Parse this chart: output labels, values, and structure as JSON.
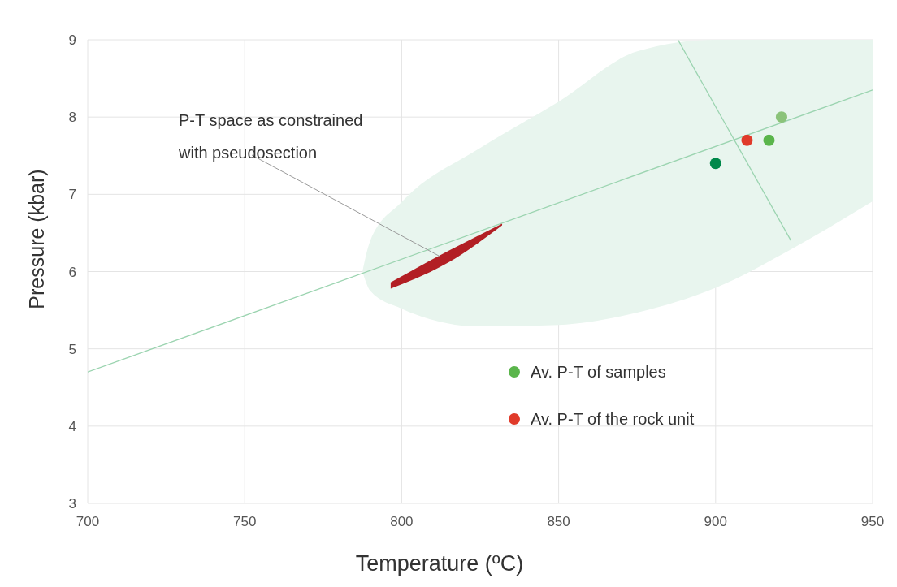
{
  "chart_data": {
    "type": "scatter",
    "xlabel": "Temperature (ºC)",
    "ylabel": "Pressure (kbar)",
    "xlim": [
      700,
      950
    ],
    "xticks": [
      700,
      750,
      800,
      850,
      900,
      950
    ],
    "ylim": [
      3,
      9
    ],
    "yticks": [
      3,
      4,
      5,
      6,
      7,
      8,
      9
    ],
    "grid": true,
    "legend": "bottom right",
    "marker": "circle",
    "annotations": [
      {
        "text": "P-T space as constrained with pseudosection",
        "x": 812,
        "y": 6.2
      }
    ],
    "series": [
      {
        "type": "line",
        "marker": "none",
        "color": "#e8f5ee",
        "x": [
          787.5,
          790,
          800,
          825,
          850,
          875,
          900,
          925,
          950
        ],
        "values": [
          null,
          null,
          null,
          null,
          null,
          null,
          null,
          null,
          null
        ],
        "upper": [
          6.0,
          6.4,
          6.9,
          7.6,
          8.2,
          8.85,
          9.0,
          9.0,
          9.0
        ],
        "lower": [
          6.0,
          5.75,
          5.52,
          5.29,
          5.31,
          5.47,
          5.79,
          6.31,
          6.91
        ]
      },
      {
        "type": "line",
        "marker": "none",
        "color": "#9bd4b0",
        "x": [
          700,
          950
        ],
        "values": [
          4.7,
          8.35
        ]
      },
      {
        "type": "line",
        "marker": "none",
        "color": "#9bd4b0",
        "x": [
          888,
          924
        ],
        "values": [
          9.0,
          6.4
        ]
      },
      {
        "type": "line",
        "marker": "none",
        "color": "#b21f24",
        "x": [
          796.5,
          815,
          832
        ],
        "values": [
          null,
          null,
          null
        ],
        "upper": [
          5.86,
          6.27,
          6.62
        ],
        "lower": [
          5.78,
          6.12,
          6.6
        ]
      },
      {
        "name": "Av. P-T of samples",
        "color": "#5ab54b",
        "colors": [
          "#00884a",
          "#5ab54b",
          "#8bc37a"
        ],
        "x": [
          900,
          917,
          921
        ],
        "values": [
          7.4,
          7.7,
          8.0
        ]
      },
      {
        "name": "Av. P-T of the rock unit",
        "color": "#e03a2a",
        "x": [
          910
        ],
        "values": [
          7.7
        ]
      }
    ]
  }
}
